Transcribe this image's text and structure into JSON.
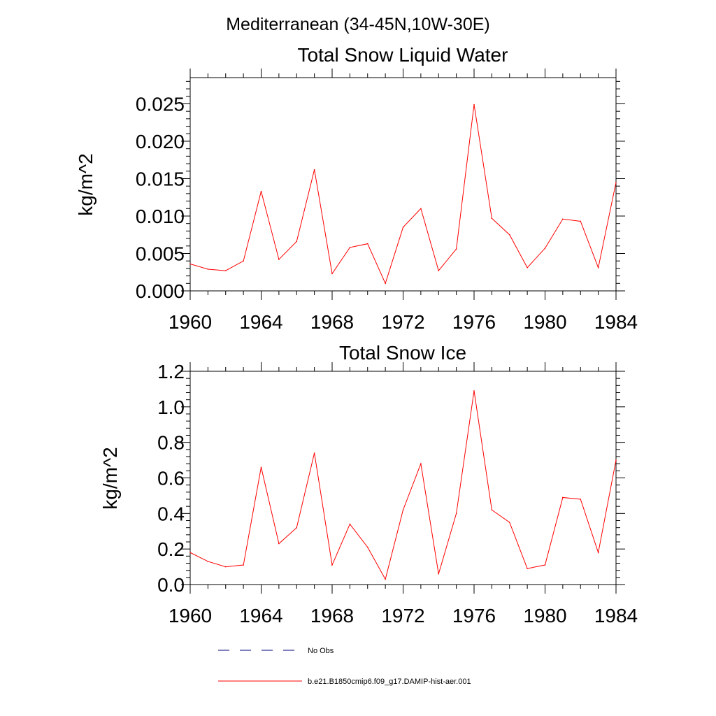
{
  "figure": {
    "title": "Mediterranean (34-45N,10W-30E)",
    "series_color": "#ff0000",
    "obs_color": "#000080"
  },
  "legend": {
    "obs_label": "No Obs",
    "model_label": "b.e21.B1850cmip6.f09_g17.DAMIP-hist-aer.001"
  },
  "chart_data": [
    {
      "type": "line",
      "title": "Total Snow Liquid Water",
      "ylabel": "kg/m^2",
      "xlabel": "",
      "xlim": [
        1960,
        1984
      ],
      "ylim": [
        0,
        0.0285
      ],
      "xticks": [
        1960,
        1964,
        1968,
        1972,
        1976,
        1980,
        1984
      ],
      "yticks": [
        "0.000",
        "0.005",
        "0.010",
        "0.015",
        "0.020",
        "0.025"
      ],
      "grid": false,
      "x": [
        1960,
        1961,
        1962,
        1963,
        1964,
        1965,
        1966,
        1967,
        1968,
        1969,
        1970,
        1971,
        1972,
        1973,
        1974,
        1975,
        1976,
        1977,
        1978,
        1979,
        1980,
        1981,
        1982,
        1983,
        1984
      ],
      "series": [
        {
          "name": "b.e21.B1850cmip6.f09_g17.DAMIP-hist-aer.001",
          "values": [
            0.0036,
            0.0029,
            0.0027,
            0.004,
            0.0133,
            0.0042,
            0.0066,
            0.0162,
            0.0023,
            0.0058,
            0.0063,
            0.001,
            0.0085,
            0.011,
            0.0027,
            0.0056,
            0.0249,
            0.0097,
            0.0075,
            0.0031,
            0.0057,
            0.0096,
            0.0093,
            0.0031,
            0.0145
          ]
        }
      ]
    },
    {
      "type": "line",
      "title": "Total Snow Ice",
      "ylabel": "kg/m^2",
      "xlabel": "",
      "xlim": [
        1960,
        1984
      ],
      "ylim": [
        0,
        1.2
      ],
      "xticks": [
        1960,
        1964,
        1968,
        1972,
        1976,
        1980,
        1984
      ],
      "yticks": [
        "0.0",
        "0.2",
        "0.4",
        "0.6",
        "0.8",
        "1.0",
        "1.2"
      ],
      "grid": false,
      "x": [
        1960,
        1961,
        1962,
        1963,
        1964,
        1965,
        1966,
        1967,
        1968,
        1969,
        1970,
        1971,
        1972,
        1973,
        1974,
        1975,
        1976,
        1977,
        1978,
        1979,
        1980,
        1981,
        1982,
        1983,
        1984
      ],
      "series": [
        {
          "name": "b.e21.B1850cmip6.f09_g17.DAMIP-hist-aer.001",
          "values": [
            0.18,
            0.13,
            0.1,
            0.11,
            0.66,
            0.23,
            0.32,
            0.74,
            0.11,
            0.34,
            0.21,
            0.03,
            0.42,
            0.68,
            0.06,
            0.4,
            1.09,
            0.42,
            0.35,
            0.09,
            0.11,
            0.49,
            0.48,
            0.18,
            0.7
          ]
        }
      ]
    }
  ]
}
